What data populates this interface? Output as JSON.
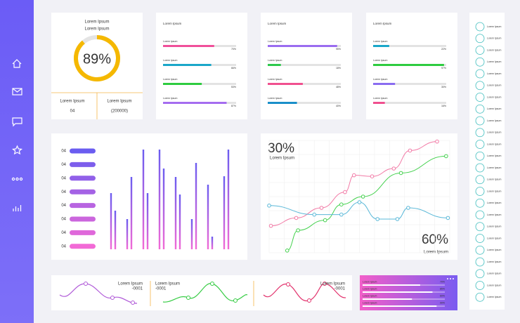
{
  "gauge": {
    "title": "Lorem Ipsum",
    "subtitle": "Lorem Ipsum",
    "value": 89,
    "value_label": "89%",
    "stats": [
      {
        "label": "Lorem Ipsum",
        "value": "04"
      },
      {
        "label": "Lorem Ipsum",
        "value": "(200000)"
      }
    ]
  },
  "progress_cards": [
    {
      "title": "Lorem Ipsum",
      "bars": [
        {
          "label": "Lorem Ipsum",
          "value": 70,
          "value_label": "70%",
          "color": "#f0509a"
        },
        {
          "label": "Lorem Ipsum",
          "value": 66,
          "value_label": "66%",
          "color": "#1aa7c9"
        },
        {
          "label": "Lorem Ipsum",
          "value": 53,
          "value_label": "53%",
          "color": "#2ecc40"
        },
        {
          "label": "Lorem Ipsum",
          "value": 87,
          "value_label": "87%",
          "color": "#a56cf0"
        }
      ]
    },
    {
      "title": "Lorem Ipsum",
      "bars": [
        {
          "label": "Lorem Ipsum",
          "value": 95,
          "value_label": "95%",
          "color": "#9a6cf0"
        },
        {
          "label": "Lorem Ipsum",
          "value": 18,
          "value_label": "18%",
          "color": "#2dc94c"
        },
        {
          "label": "Lorem Ipsum",
          "value": 48,
          "value_label": "48%",
          "color": "#f0508f"
        },
        {
          "label": "Lorem Ipsum",
          "value": 40,
          "value_label": "40%",
          "color": "#1a8fc9"
        }
      ]
    },
    {
      "title": "Lorem Ipsum",
      "bars": [
        {
          "label": "Lorem Ipsum",
          "value": 22,
          "value_label": "22%",
          "color": "#1aa7c9"
        },
        {
          "label": "Lorem Ipsum",
          "value": 97,
          "value_label": "97%",
          "color": "#2ecc40"
        },
        {
          "label": "Lorem Ipsum",
          "value": 30,
          "value_label": "30%",
          "color": "#8a6cf0"
        },
        {
          "label": "Lorem Ipsum",
          "value": 16,
          "value_label": "16%",
          "color": "#f0508f"
        }
      ]
    }
  ],
  "bar_panel": {
    "labels": [
      "04",
      "04",
      "04",
      "04",
      "04",
      "04",
      "04",
      "04"
    ],
    "ylim": [
      0,
      150
    ],
    "values": [
      80,
      55,
      43,
      103,
      142,
      80,
      142,
      115,
      103,
      78,
      43,
      123,
      92,
      18,
      104,
      142
    ]
  },
  "line_panel": {
    "xlim": [
      0,
      100
    ],
    "ylim": [
      0,
      100
    ],
    "top_value": "30%",
    "top_label": "Lorem Ipsum",
    "bottom_value": "60%",
    "bottom_label": "Lorem Ipsum",
    "series": [
      {
        "color": "#f27aa6",
        "x": [
          1,
          15,
          29,
          42,
          47,
          57,
          69,
          78,
          93
        ],
        "values": [
          24,
          31,
          40,
          54,
          69,
          68,
          75,
          91,
          99
        ]
      },
      {
        "color": "#44d14e",
        "x": [
          10,
          16,
          31,
          40,
          52,
          73,
          98
        ],
        "values": [
          2,
          20,
          29,
          43,
          50,
          71,
          86
        ]
      },
      {
        "color": "#5ab8d8",
        "x": [
          0,
          25,
          40,
          50,
          60,
          71,
          77,
          99
        ],
        "values": [
          42,
          34,
          34,
          45,
          30,
          30,
          40,
          31
        ]
      }
    ]
  },
  "waves": [
    {
      "label": "Lorem Ipsum",
      "code": "-0001"
    },
    {
      "label": "Lorem Ipsum",
      "code": "-0001"
    },
    {
      "label": "Lorem Ipsum",
      "code": "-0001"
    }
  ],
  "gradient_card": {
    "bars": [
      {
        "label": "Lorem Ipsum",
        "value_label": "70%",
        "value": 70
      },
      {
        "label": "Lorem Ipsum",
        "value_label": "85%",
        "value": 85
      },
      {
        "label": "Lorem Ipsum",
        "value_label": "60%",
        "value": 60
      },
      {
        "label": "Lorem Ipsum",
        "value_label": "90%",
        "value": 90
      }
    ]
  },
  "list": [
    "Lorem Ipsum",
    "Lorem Ipsum",
    "Lorem Ipsum",
    "Lorem Ipsum",
    "Lorem Ipsum",
    "Lorem Ipsum",
    "Lorem Ipsum",
    "Lorem Ipsum",
    "Lorem Ipsum",
    "Lorem Ipsum",
    "Lorem Ipsum",
    "Lorem Ipsum",
    "Lorem Ipsum",
    "Lorem Ipsum",
    "Lorem Ipsum",
    "Lorem Ipsum",
    "Lorem Ipsum",
    "Lorem Ipsum",
    "Lorem Ipsum",
    "Lorem Ipsum",
    "Lorem Ipsum",
    "Lorem Ipsum",
    "Lorem Ipsum",
    "Lorem Ipsum"
  ]
}
